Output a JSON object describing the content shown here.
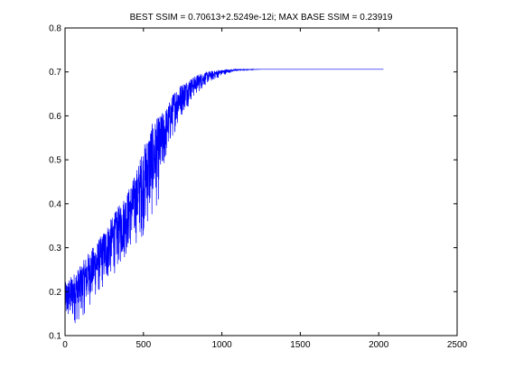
{
  "chart_data": {
    "type": "line",
    "title": "BEST SSIM = 0.70613+2.5249e-12i; MAX BASE SSIM = 0.23919",
    "xlabel": "",
    "ylabel": "",
    "xlim": [
      0,
      2500
    ],
    "ylim": [
      0.1,
      0.8
    ],
    "xticks": [
      0,
      500,
      1000,
      1500,
      2000,
      2500
    ],
    "yticks": [
      0.1,
      0.2,
      0.3,
      0.4,
      0.5,
      0.6,
      0.7,
      0.8
    ],
    "xtick_labels": [
      "0",
      "500",
      "1000",
      "1500",
      "2000",
      "2500"
    ],
    "ytick_labels": [
      "0.1",
      "0.2",
      "0.3",
      "0.4",
      "0.5",
      "0.6",
      "0.7",
      "0.8"
    ],
    "grid": false,
    "series": [
      {
        "color": "#0000ff",
        "x_range": [
          1,
          2030
        ],
        "upper_envelope": {
          "x": [
            0,
            50,
            100,
            150,
            200,
            250,
            300,
            350,
            400,
            450,
            500,
            550,
            600,
            650,
            700,
            750,
            800,
            850,
            900,
            950,
            1000,
            1050,
            1100,
            1150,
            1200,
            1250,
            1300,
            2030
          ],
          "y": [
            0.22,
            0.24,
            0.26,
            0.29,
            0.31,
            0.34,
            0.37,
            0.4,
            0.43,
            0.47,
            0.53,
            0.58,
            0.6,
            0.62,
            0.66,
            0.675,
            0.685,
            0.695,
            0.7,
            0.703,
            0.705,
            0.706,
            0.706,
            0.706,
            0.706,
            0.706,
            0.706,
            0.706
          ]
        },
        "lower_envelope": {
          "x": [
            0,
            50,
            100,
            150,
            200,
            250,
            300,
            350,
            400,
            450,
            500,
            550,
            600,
            650,
            700,
            750,
            800,
            850,
            900,
            950,
            1000,
            1050,
            1100,
            1150,
            1200,
            1250,
            1300,
            2030
          ],
          "y": [
            0.12,
            0.12,
            0.13,
            0.16,
            0.18,
            0.2,
            0.23,
            0.25,
            0.28,
            0.3,
            0.32,
            0.35,
            0.4,
            0.5,
            0.56,
            0.6,
            0.63,
            0.65,
            0.67,
            0.68,
            0.69,
            0.698,
            0.702,
            0.704,
            0.705,
            0.706,
            0.706,
            0.706
          ]
        }
      }
    ]
  }
}
